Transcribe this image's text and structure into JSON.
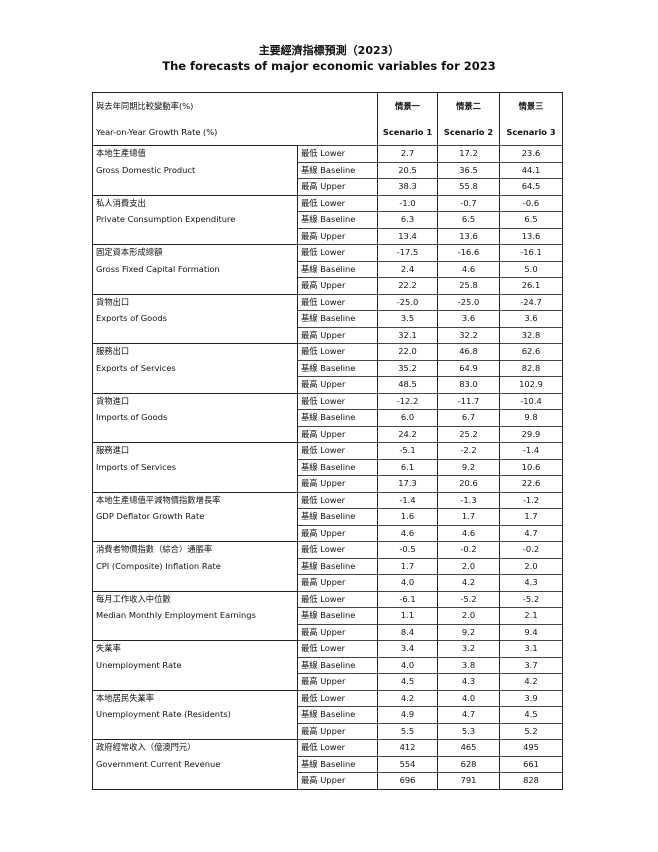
{
  "title_zh": "主要經濟指標預測（2023）",
  "title_en": "The forecasts of major economic variables for 2023",
  "header": {
    "label_zh": "與去年同期比較變動率(%)",
    "label_en": "Year-on-Year Growth Rate (%)",
    "scenarios": [
      {
        "zh": "情景一",
        "en": "Scenario 1"
      },
      {
        "zh": "情景二",
        "en": "Scenario 2"
      },
      {
        "zh": "情景三",
        "en": "Scenario 3"
      }
    ]
  },
  "bounds": [
    "最低 Lower",
    "基線 Baseline",
    "最高 Upper"
  ],
  "rows": [
    {
      "zh": "本地生產總值",
      "en": "Gross Domestic Product",
      "values": [
        [
          "2.7",
          "17.2",
          "23.6"
        ],
        [
          "20.5",
          "36.5",
          "44.1"
        ],
        [
          "38.3",
          "55.8",
          "64.5"
        ]
      ]
    },
    {
      "zh": "私人消費支出",
      "en": "Private Consumption Expenditure",
      "values": [
        [
          "-1.0",
          "-0.7",
          "-0.6"
        ],
        [
          "6.3",
          "6.5",
          "6.5"
        ],
        [
          "13.4",
          "13.6",
          "13.6"
        ]
      ]
    },
    {
      "zh": "固定資本形成總額",
      "en": "Gross Fixed Capital Formation",
      "values": [
        [
          "-17.5",
          "-16.6",
          "-16.1"
        ],
        [
          "2.4",
          "4.6",
          "5.0"
        ],
        [
          "22.2",
          "25.8",
          "26.1"
        ]
      ]
    },
    {
      "zh": "貨物出口",
      "en": "Exports of Goods",
      "values": [
        [
          "-25.0",
          "-25.0",
          "-24.7"
        ],
        [
          "3.5",
          "3.6",
          "3.6"
        ],
        [
          "32.1",
          "32.2",
          "32.8"
        ]
      ]
    },
    {
      "zh": "服務出口",
      "en": "Exports of Services",
      "values": [
        [
          "22.0",
          "46.8",
          "62.6"
        ],
        [
          "35.2",
          "64.9",
          "82.8"
        ],
        [
          "48.5",
          "83.0",
          "102.9"
        ]
      ]
    },
    {
      "zh": "貨物進口",
      "en": "Imports of Goods",
      "values": [
        [
          "-12.2",
          "-11.7",
          "-10.4"
        ],
        [
          "6.0",
          "6.7",
          "9.8"
        ],
        [
          "24.2",
          "25.2",
          "29.9"
        ]
      ]
    },
    {
      "zh": "服務進口",
      "en": "Imports of Services",
      "values": [
        [
          "-5.1",
          "-2.2",
          "-1.4"
        ],
        [
          "6.1",
          "9.2",
          "10.6"
        ],
        [
          "17.3",
          "20.6",
          "22.6"
        ]
      ]
    },
    {
      "zh": "本地生產總值平減物價指數增長率",
      "en": "GDP Deflator Growth Rate",
      "values": [
        [
          "-1.4",
          "-1.3",
          "-1.2"
        ],
        [
          "1.6",
          "1.7",
          "1.7"
        ],
        [
          "4.6",
          "4.6",
          "4.7"
        ]
      ]
    },
    {
      "zh": "消費者物價指數（綜合）通脹率",
      "en": "CPI (Composite) Inflation Rate",
      "values": [
        [
          "-0.5",
          "-0.2",
          "-0.2"
        ],
        [
          "1.7",
          "2.0",
          "2.0"
        ],
        [
          "4.0",
          "4.2",
          "4.3"
        ]
      ]
    },
    {
      "zh": "每月工作收入中位數",
      "en": "Median Monthly Employment Earnings",
      "values": [
        [
          "-6.1",
          "-5.2",
          "-5.2"
        ],
        [
          "1.1",
          "2.0",
          "2.1"
        ],
        [
          "8.4",
          "9.2",
          "9.4"
        ]
      ]
    },
    {
      "zh": "失業率",
      "en": "Unemployment Rate",
      "values": [
        [
          "3.4",
          "3.2",
          "3.1"
        ],
        [
          "4.0",
          "3.8",
          "3.7"
        ],
        [
          "4.5",
          "4.3",
          "4.2"
        ]
      ]
    },
    {
      "zh": "本地居民失業率",
      "en": "Unemployment Rate (Residents)",
      "values": [
        [
          "4.2",
          "4.0",
          "3.9"
        ],
        [
          "4.9",
          "4.7",
          "4.5"
        ],
        [
          "5.5",
          "5.3",
          "5.2"
        ]
      ]
    },
    {
      "zh": "政府經常收入（億澳門元）",
      "en": "Government Current Revenue",
      "values": [
        [
          "412",
          "465",
          "495"
        ],
        [
          "554",
          "628",
          "661"
        ],
        [
          "696",
          "791",
          "828"
        ]
      ]
    }
  ]
}
